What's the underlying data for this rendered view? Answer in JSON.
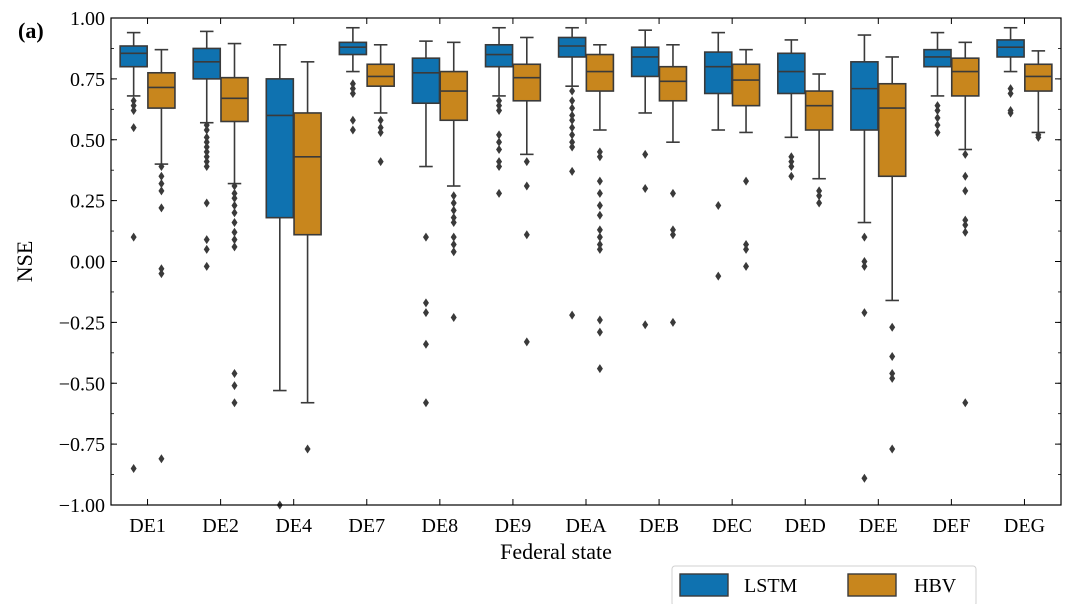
{
  "panel_label": "(a)",
  "colors": {
    "LSTM": "#0f72b0",
    "HBV": "#c8861d",
    "line": "#3a3a3a"
  },
  "chart_data": {
    "type": "box",
    "title": "",
    "xlabel": "Federal state",
    "ylabel": "NSE",
    "ylim": [
      -1.0,
      1.0
    ],
    "yticks": [
      -1.0,
      -0.75,
      -0.5,
      -0.25,
      0.0,
      0.25,
      0.5,
      0.75,
      1.0
    ],
    "ytick_labels": [
      "−1.00",
      "−0.75",
      "−0.50",
      "−0.25",
      "0.00",
      "0.25",
      "0.50",
      "0.75",
      "1.00"
    ],
    "categories": [
      "DE1",
      "DE2",
      "DE4",
      "DE7",
      "DE8",
      "DE9",
      "DEA",
      "DEB",
      "DEC",
      "DED",
      "DEE",
      "DEF",
      "DEG"
    ],
    "legend": {
      "placement": "below-right",
      "entries": [
        "LSTM",
        "HBV"
      ]
    },
    "series": [
      {
        "name": "LSTM",
        "boxes": [
          {
            "whislo": 0.68,
            "q1": 0.8,
            "med": 0.855,
            "q3": 0.885,
            "whishi": 0.94,
            "fliers": [
              0.66,
              0.64,
              0.62,
              0.55,
              0.1,
              -0.85
            ]
          },
          {
            "whislo": 0.57,
            "q1": 0.75,
            "med": 0.82,
            "q3": 0.875,
            "whishi": 0.945,
            "fliers": [
              0.56,
              0.54,
              0.51,
              0.49,
              0.47,
              0.45,
              0.43,
              0.41,
              0.39,
              0.24,
              0.09,
              0.05,
              -0.02
            ]
          },
          {
            "whislo": -0.53,
            "q1": 0.18,
            "med": 0.6,
            "q3": 0.75,
            "whishi": 0.89,
            "fliers": [
              -1.0
            ]
          },
          {
            "whislo": 0.78,
            "q1": 0.85,
            "med": 0.88,
            "q3": 0.9,
            "whishi": 0.96,
            "fliers": [
              0.73,
              0.71,
              0.69,
              0.58,
              0.54
            ]
          },
          {
            "whislo": 0.39,
            "q1": 0.65,
            "med": 0.775,
            "q3": 0.835,
            "whishi": 0.905,
            "fliers": [
              0.1,
              -0.17,
              -0.21,
              -0.34,
              -0.58
            ]
          },
          {
            "whislo": 0.68,
            "q1": 0.8,
            "med": 0.85,
            "q3": 0.89,
            "whishi": 0.96,
            "fliers": [
              0.66,
              0.64,
              0.62,
              0.52,
              0.49,
              0.46,
              0.41,
              0.39,
              0.28
            ]
          },
          {
            "whislo": 0.72,
            "q1": 0.84,
            "med": 0.885,
            "q3": 0.92,
            "whishi": 0.96,
            "fliers": [
              0.7,
              0.66,
              0.63,
              0.6,
              0.58,
              0.55,
              0.52,
              0.49,
              0.47,
              0.37,
              -0.22
            ]
          },
          {
            "whislo": 0.61,
            "q1": 0.76,
            "med": 0.84,
            "q3": 0.88,
            "whishi": 0.95,
            "fliers": [
              0.44,
              0.3,
              -0.26
            ]
          },
          {
            "whislo": 0.54,
            "q1": 0.69,
            "med": 0.8,
            "q3": 0.86,
            "whishi": 0.94,
            "fliers": [
              0.23,
              -0.06
            ]
          },
          {
            "whislo": 0.51,
            "q1": 0.69,
            "med": 0.78,
            "q3": 0.855,
            "whishi": 0.91,
            "fliers": [
              0.43,
              0.41,
              0.39,
              0.35
            ]
          },
          {
            "whislo": 0.16,
            "q1": 0.54,
            "med": 0.71,
            "q3": 0.82,
            "whishi": 0.93,
            "fliers": [
              0.1,
              0.0,
              -0.02,
              -0.21,
              -0.89
            ]
          },
          {
            "whislo": 0.68,
            "q1": 0.8,
            "med": 0.84,
            "q3": 0.87,
            "whishi": 0.94,
            "fliers": [
              0.64,
              0.62,
              0.59,
              0.56,
              0.53
            ]
          },
          {
            "whislo": 0.78,
            "q1": 0.84,
            "med": 0.88,
            "q3": 0.91,
            "whishi": 0.96,
            "fliers": [
              0.71,
              0.69,
              0.62,
              0.61
            ]
          }
        ]
      },
      {
        "name": "HBV",
        "boxes": [
          {
            "whislo": 0.4,
            "q1": 0.63,
            "med": 0.715,
            "q3": 0.775,
            "whishi": 0.87,
            "fliers": [
              0.39,
              0.35,
              0.32,
              0.29,
              0.22,
              -0.03,
              -0.05,
              -0.81
            ]
          },
          {
            "whislo": 0.32,
            "q1": 0.575,
            "med": 0.67,
            "q3": 0.755,
            "whishi": 0.895,
            "fliers": [
              0.31,
              0.28,
              0.26,
              0.23,
              0.2,
              0.16,
              0.12,
              0.09,
              0.06,
              -0.46,
              -0.51,
              -0.58
            ]
          },
          {
            "whislo": -0.58,
            "q1": 0.11,
            "med": 0.43,
            "q3": 0.61,
            "whishi": 0.82,
            "fliers": [
              -0.77
            ]
          },
          {
            "whislo": 0.61,
            "q1": 0.72,
            "med": 0.76,
            "q3": 0.81,
            "whishi": 0.89,
            "fliers": [
              0.58,
              0.55,
              0.53,
              0.41
            ]
          },
          {
            "whislo": 0.31,
            "q1": 0.58,
            "med": 0.7,
            "q3": 0.78,
            "whishi": 0.9,
            "fliers": [
              0.27,
              0.24,
              0.21,
              0.18,
              0.16,
              0.1,
              0.07,
              0.04,
              -0.23
            ]
          },
          {
            "whislo": 0.44,
            "q1": 0.66,
            "med": 0.755,
            "q3": 0.81,
            "whishi": 0.92,
            "fliers": [
              0.41,
              0.31,
              0.11,
              -0.33
            ]
          },
          {
            "whislo": 0.54,
            "q1": 0.7,
            "med": 0.78,
            "q3": 0.85,
            "whishi": 0.89,
            "fliers": [
              0.45,
              0.43,
              0.33,
              0.28,
              0.23,
              0.19,
              0.13,
              0.1,
              0.07,
              0.05,
              -0.24,
              -0.29,
              -0.44
            ]
          },
          {
            "whislo": 0.49,
            "q1": 0.66,
            "med": 0.74,
            "q3": 0.8,
            "whishi": 0.89,
            "fliers": [
              0.28,
              0.13,
              0.11,
              -0.25
            ]
          },
          {
            "whislo": 0.53,
            "q1": 0.64,
            "med": 0.745,
            "q3": 0.81,
            "whishi": 0.87,
            "fliers": [
              0.33,
              0.07,
              0.05,
              -0.02
            ]
          },
          {
            "whislo": 0.34,
            "q1": 0.54,
            "med": 0.64,
            "q3": 0.7,
            "whishi": 0.77,
            "fliers": [
              0.29,
              0.27,
              0.24
            ]
          },
          {
            "whislo": -0.16,
            "q1": 0.35,
            "med": 0.63,
            "q3": 0.73,
            "whishi": 0.84,
            "fliers": [
              -0.27,
              -0.39,
              -0.46,
              -0.48,
              -0.77
            ]
          },
          {
            "whislo": 0.46,
            "q1": 0.68,
            "med": 0.78,
            "q3": 0.835,
            "whishi": 0.9,
            "fliers": [
              0.44,
              0.35,
              0.29,
              0.17,
              0.15,
              0.12,
              -0.58
            ]
          },
          {
            "whislo": 0.53,
            "q1": 0.7,
            "med": 0.76,
            "q3": 0.81,
            "whishi": 0.865,
            "fliers": [
              0.52,
              0.51
            ]
          }
        ]
      }
    ]
  }
}
